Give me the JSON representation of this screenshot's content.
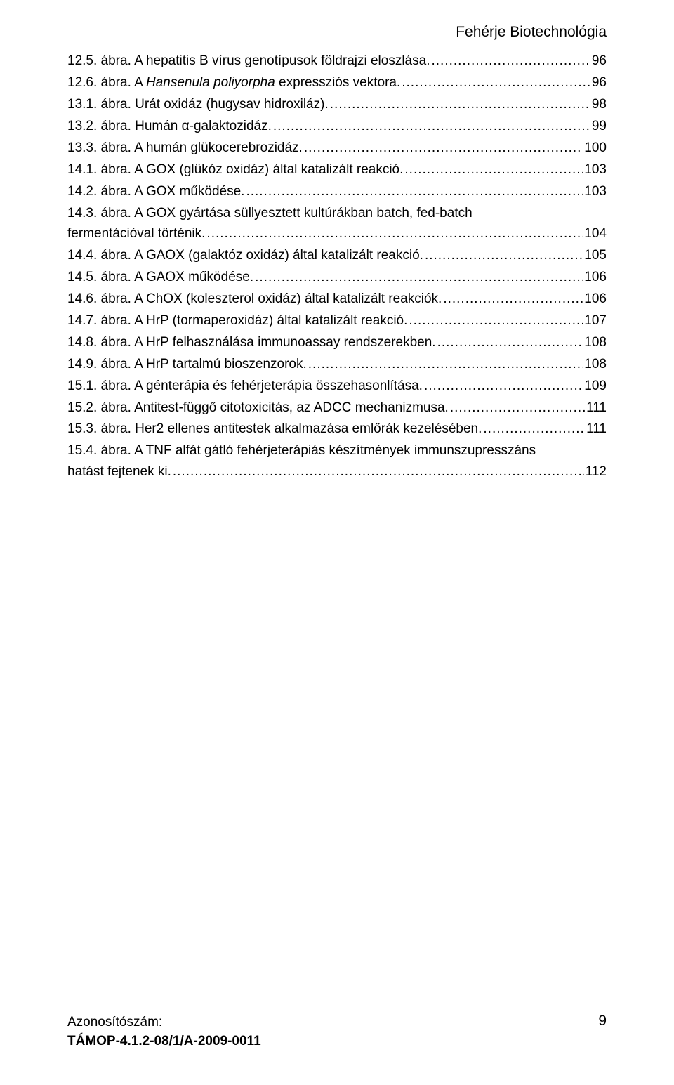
{
  "running_header": "Fehérje Biotechnológia",
  "entries": [
    {
      "label": "12.5. ábra. A hepatitis B vírus genotípusok földrajzi eloszlása.",
      "italic_span": null,
      "page": "96"
    },
    {
      "label": "12.6. ábra. A Hansenula poliyorpha expressziós vektora.",
      "italic_span": "Hansenula poliyorpha",
      "page": "96"
    },
    {
      "label": "13.1. ábra. Urát oxidáz (hugysav hidroxiláz).",
      "italic_span": null,
      "page": "98"
    },
    {
      "label": "13.2. ábra. Humán α-galaktozidáz.",
      "italic_span": null,
      "page": "99"
    },
    {
      "label": "13.3. ábra. A humán glükocerebrozidáz.",
      "italic_span": null,
      "page": "100"
    },
    {
      "label": "14.1. ábra. A GOX (glükóz oxidáz) által katalizált reakció.",
      "italic_span": null,
      "page": "103"
    },
    {
      "label": "14.2. ábra. A GOX működése.",
      "italic_span": null,
      "page": "103"
    },
    {
      "label": "14.3. ábra. A GOX gyártása süllyesztett kultúrákban batch, fed-batch",
      "italic_span": null,
      "page": null,
      "continuation_next": "fermentációval történik.",
      "cont_page": "104"
    },
    {
      "label": "14.4. ábra. A GAOX (galaktóz oxidáz) által katalizált reakció.",
      "italic_span": null,
      "page": "105"
    },
    {
      "label": "14.5. ábra. A GAOX működése.",
      "italic_span": null,
      "page": "106"
    },
    {
      "label": "14.6. ábra. A ChOX (koleszterol oxidáz) által katalizált reakciók.",
      "italic_span": null,
      "page": "106"
    },
    {
      "label": "14.7. ábra. A HrP (tormaperoxidáz) által katalizált reakció.",
      "italic_span": null,
      "page": "107"
    },
    {
      "label": "14.8. ábra. A HrP felhasználása immunoassay rendszerekben.",
      "italic_span": null,
      "page": "108"
    },
    {
      "label": "14.9. ábra. A HrP tartalmú bioszenzorok.",
      "italic_span": null,
      "page": "108"
    },
    {
      "label": "15.1. ábra. A génterápia és fehérjeterápia összehasonlítása.",
      "italic_span": null,
      "page": "109"
    },
    {
      "label": "15.2. ábra. Antitest-függő citotoxicitás, az ADCC mechanizmusa.",
      "italic_span": null,
      "page": "111"
    },
    {
      "label": "15.3. ábra. Her2 ellenes antitestek alkalmazása emlőrák kezelésében.",
      "italic_span": null,
      "page": "111"
    },
    {
      "label": "15.4. ábra. A TNF alfát gátló fehérjeterápiás készítmények immunszupresszáns",
      "italic_span": null,
      "page": null,
      "continuation_next": "hatást fejtenek ki.",
      "cont_page": "112"
    }
  ],
  "footer": {
    "left_line1": "Azonosítószám:",
    "left_line2": "TÁMOP-4.1.2-08/1/A-2009-0011",
    "page_number": "9"
  }
}
